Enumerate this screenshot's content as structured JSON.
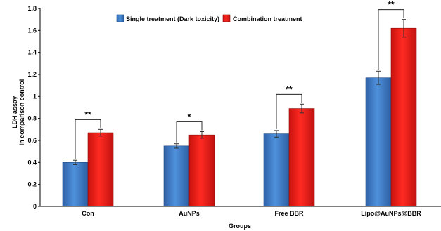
{
  "chart_data": {
    "type": "bar",
    "xlabel": "Groups",
    "ylabel_lines": [
      "LDH assay",
      "in comparison control"
    ],
    "ylim": [
      0,
      1.8
    ],
    "yticks": [
      "0",
      "0.2",
      "0.4",
      "0.6",
      "0.8",
      "1",
      "1.2",
      "1.4",
      "1.6",
      "1.8"
    ],
    "categories": [
      "Con",
      "AuNPs",
      "Free BBR",
      "Lipo@AuNPs@BBR"
    ],
    "series": [
      {
        "name": "Single treatment (Dark toxicity)",
        "color": "#3d7cc9",
        "values": [
          0.4,
          0.55,
          0.66,
          1.17
        ],
        "errors": [
          0.02,
          0.02,
          0.03,
          0.06
        ]
      },
      {
        "name": "Combination treatment",
        "color": "#e8201c",
        "values": [
          0.67,
          0.65,
          0.89,
          1.62
        ],
        "errors": [
          0.03,
          0.03,
          0.04,
          0.08
        ]
      }
    ],
    "significance": [
      "**",
      "*",
      "**",
      "**"
    ],
    "legend_position": "top-center",
    "grid": false
  }
}
